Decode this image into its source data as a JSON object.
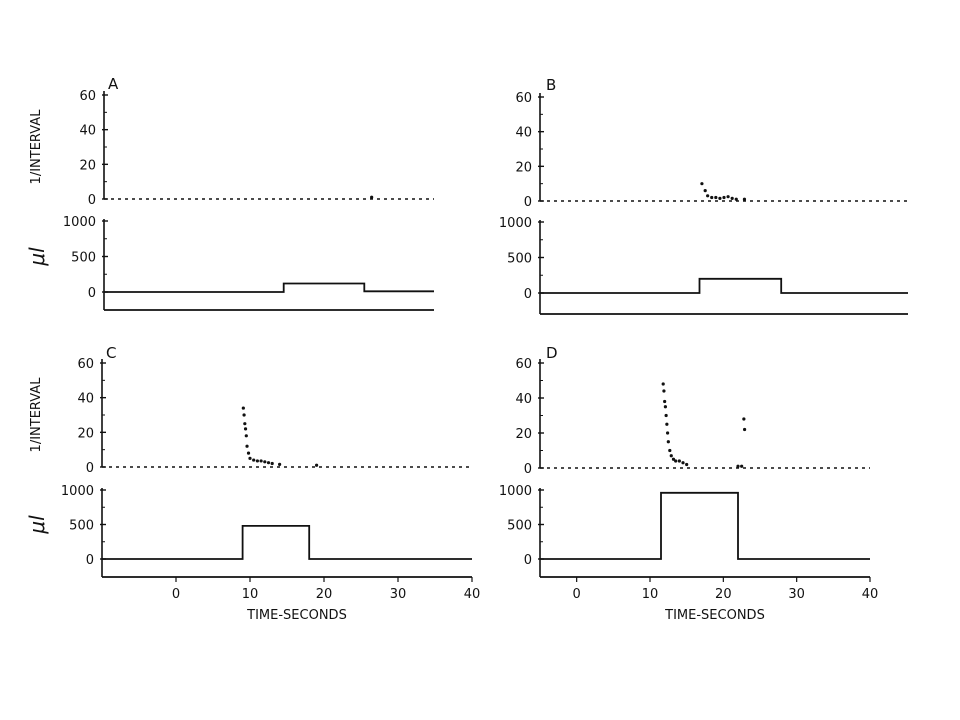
{
  "xlabel": "TIME-SECONDS",
  "ylabel_top": "1/INTERVAL",
  "ylabel_bottom": "μl",
  "chart_data": [
    {
      "panel": "A",
      "type": "scatter",
      "xlim": [
        -10,
        35
      ],
      "top": {
        "ylim": [
          0,
          60
        ],
        "yticks": [
          0,
          20,
          40,
          60
        ],
        "baseline": 0,
        "points": [
          [
            26.5,
            1
          ]
        ]
      },
      "bottom": {
        "type": "line",
        "ylim": [
          0,
          1000
        ],
        "yticks": [
          0,
          500,
          1000
        ],
        "steps": [
          [
            -10,
            0
          ],
          [
            14.5,
            0
          ],
          [
            14.5,
            120
          ],
          [
            25.5,
            120
          ],
          [
            25.5,
            10
          ],
          [
            35,
            10
          ]
        ]
      }
    },
    {
      "panel": "B",
      "type": "scatter",
      "xlim": [
        -5,
        40
      ],
      "top": {
        "ylim": [
          0,
          60
        ],
        "yticks": [
          0,
          20,
          40,
          60
        ],
        "baseline": 0,
        "points": [
          [
            14.8,
            10
          ],
          [
            15.2,
            6
          ],
          [
            15.5,
            3
          ],
          [
            16,
            2
          ],
          [
            16.5,
            2
          ],
          [
            17,
            1.5
          ],
          [
            17.5,
            2
          ],
          [
            18,
            2.5
          ],
          [
            18.5,
            1.5
          ],
          [
            19,
            1
          ],
          [
            20,
            1
          ]
        ]
      },
      "bottom": {
        "type": "line",
        "ylim": [
          0,
          1000
        ],
        "yticks": [
          0,
          500,
          1000
        ],
        "steps": [
          [
            -5,
            0
          ],
          [
            14.5,
            0
          ],
          [
            14.5,
            200
          ],
          [
            24.5,
            200
          ],
          [
            24.5,
            0
          ],
          [
            40,
            0
          ]
        ]
      }
    },
    {
      "panel": "C",
      "type": "scatter",
      "xlim": [
        -10,
        40
      ],
      "xticks": [
        0,
        10,
        20,
        30,
        40
      ],
      "top": {
        "ylim": [
          0,
          60
        ],
        "yticks": [
          0,
          20,
          40,
          60
        ],
        "baseline": 0,
        "points": [
          [
            9.1,
            34
          ],
          [
            9.2,
            30
          ],
          [
            9.3,
            25
          ],
          [
            9.4,
            22
          ],
          [
            9.5,
            18
          ],
          [
            9.6,
            12
          ],
          [
            9.8,
            8
          ],
          [
            10,
            5
          ],
          [
            10.5,
            4
          ],
          [
            11,
            3.5
          ],
          [
            11.5,
            3.5
          ],
          [
            12,
            3
          ],
          [
            12.5,
            2.5
          ],
          [
            13,
            2
          ],
          [
            14,
            1.5
          ],
          [
            19,
            1
          ]
        ]
      },
      "bottom": {
        "type": "line",
        "ylim": [
          0,
          1000
        ],
        "yticks": [
          0,
          500,
          1000
        ],
        "steps": [
          [
            -10,
            0
          ],
          [
            9,
            0
          ],
          [
            9,
            480
          ],
          [
            18,
            480
          ],
          [
            18,
            0
          ],
          [
            40,
            0
          ]
        ]
      }
    },
    {
      "panel": "D",
      "type": "scatter",
      "xlim": [
        -5,
        40
      ],
      "xticks": [
        0,
        10,
        20,
        30,
        40
      ],
      "top": {
        "ylim": [
          0,
          60
        ],
        "yticks": [
          0,
          20,
          40,
          60
        ],
        "baseline": 0,
        "points": [
          [
            11.8,
            48
          ],
          [
            11.9,
            44
          ],
          [
            12,
            38
          ],
          [
            12.1,
            35
          ],
          [
            12.2,
            30
          ],
          [
            12.3,
            25
          ],
          [
            12.4,
            20
          ],
          [
            12.5,
            15
          ],
          [
            12.7,
            10
          ],
          [
            12.9,
            7
          ],
          [
            13.2,
            5
          ],
          [
            13.5,
            4
          ],
          [
            14,
            4
          ],
          [
            14.5,
            3
          ],
          [
            15,
            2
          ],
          [
            22.8,
            28
          ],
          [
            22.9,
            22
          ],
          [
            22,
            1
          ],
          [
            22.5,
            1
          ]
        ]
      },
      "bottom": {
        "type": "line",
        "ylim": [
          0,
          1000
        ],
        "yticks": [
          0,
          500,
          1000
        ],
        "steps": [
          [
            -5,
            0
          ],
          [
            11.5,
            0
          ],
          [
            11.5,
            960
          ],
          [
            22,
            960
          ],
          [
            22,
            0
          ],
          [
            40,
            0
          ]
        ]
      }
    }
  ]
}
